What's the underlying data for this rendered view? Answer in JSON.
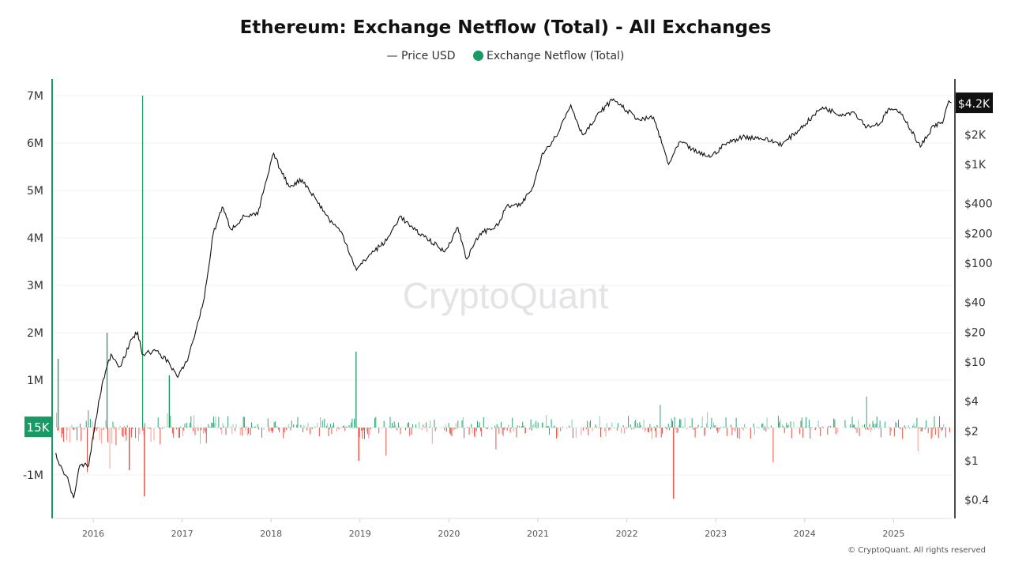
{
  "chart_data": {
    "type": "bar+line",
    "title": "Ethereum: Exchange Netflow (Total) - All Exchanges",
    "legend": {
      "placement": "top-center",
      "price_label": "— Price USD",
      "netflow_label": "Exchange Netflow (Total)"
    },
    "watermark": "CryptoQuant",
    "copyright": "© CryptoQuant. All rights reserved",
    "colors": {
      "price": "#111111",
      "inflow": "#1a9a63",
      "outflow": "#f03a2e",
      "left_axis": "#1a9a63"
    },
    "left_axis": {
      "ticks": [
        "7M",
        "6M",
        "5M",
        "4M",
        "3M",
        "2M",
        "1M",
        "-1M"
      ],
      "tick_values": [
        7000000,
        6000000,
        5000000,
        4000000,
        3000000,
        2000000,
        1000000,
        -1000000
      ],
      "current_label": "15K",
      "current_value": 15000,
      "range": [
        -1900000,
        7300000
      ]
    },
    "right_axis": {
      "scale": "log",
      "ticks": [
        "$2K",
        "$1K",
        "$400",
        "$200",
        "$100",
        "$40",
        "$20",
        "$10",
        "$4",
        "$2",
        "$1",
        "$0.4"
      ],
      "tick_values": [
        2000,
        1000,
        400,
        200,
        100,
        40,
        20,
        10,
        4,
        2,
        1,
        0.4
      ],
      "current_label": "$4.2K",
      "current_value": 4200
    },
    "x_axis": {
      "ticks": [
        "2016",
        "2017",
        "2018",
        "2019",
        "2020",
        "2021",
        "2022",
        "2023",
        "2024",
        "2025"
      ],
      "range": [
        2015.56,
        2025.65
      ]
    },
    "price_usd": [
      [
        2015.58,
        1.2
      ],
      [
        2015.62,
        0.9
      ],
      [
        2015.7,
        0.7
      ],
      [
        2015.78,
        0.42
      ],
      [
        2015.85,
        0.9
      ],
      [
        2015.95,
        0.9
      ],
      [
        2016.0,
        1.8
      ],
      [
        2016.1,
        6
      ],
      [
        2016.2,
        12
      ],
      [
        2016.3,
        9
      ],
      [
        2016.45,
        18
      ],
      [
        2016.5,
        20
      ],
      [
        2016.55,
        12
      ],
      [
        2016.7,
        13
      ],
      [
        2016.85,
        10
      ],
      [
        2016.95,
        7
      ],
      [
        2017.05,
        10
      ],
      [
        2017.15,
        20
      ],
      [
        2017.25,
        45
      ],
      [
        2017.35,
        200
      ],
      [
        2017.45,
        370
      ],
      [
        2017.55,
        220
      ],
      [
        2017.7,
        300
      ],
      [
        2017.85,
        310
      ],
      [
        2017.95,
        700
      ],
      [
        2018.03,
        1300
      ],
      [
        2018.1,
        900
      ],
      [
        2018.2,
        600
      ],
      [
        2018.35,
        700
      ],
      [
        2018.5,
        450
      ],
      [
        2018.65,
        280
      ],
      [
        2018.8,
        200
      ],
      [
        2018.96,
        85
      ],
      [
        2019.1,
        120
      ],
      [
        2019.3,
        170
      ],
      [
        2019.45,
        300
      ],
      [
        2019.6,
        220
      ],
      [
        2019.75,
        180
      ],
      [
        2019.95,
        130
      ],
      [
        2020.1,
        230
      ],
      [
        2020.2,
        110
      ],
      [
        2020.35,
        200
      ],
      [
        2020.55,
        240
      ],
      [
        2020.65,
        380
      ],
      [
        2020.8,
        380
      ],
      [
        2020.95,
        600
      ],
      [
        2021.05,
        1300
      ],
      [
        2021.2,
        1900
      ],
      [
        2021.37,
        4000
      ],
      [
        2021.5,
        2000
      ],
      [
        2021.6,
        2500
      ],
      [
        2021.7,
        3400
      ],
      [
        2021.85,
        4600
      ],
      [
        2022.0,
        3500
      ],
      [
        2022.15,
        2800
      ],
      [
        2022.3,
        3000
      ],
      [
        2022.47,
        1000
      ],
      [
        2022.6,
        1700
      ],
      [
        2022.8,
        1300
      ],
      [
        2022.95,
        1200
      ],
      [
        2023.1,
        1600
      ],
      [
        2023.3,
        1900
      ],
      [
        2023.5,
        1850
      ],
      [
        2023.75,
        1600
      ],
      [
        2023.95,
        2300
      ],
      [
        2024.2,
        3800
      ],
      [
        2024.4,
        3200
      ],
      [
        2024.55,
        3400
      ],
      [
        2024.7,
        2400
      ],
      [
        2024.85,
        2600
      ],
      [
        2024.95,
        3700
      ],
      [
        2025.1,
        3200
      ],
      [
        2025.3,
        1500
      ],
      [
        2025.45,
        2500
      ],
      [
        2025.55,
        2600
      ],
      [
        2025.62,
        4400
      ],
      [
        2025.65,
        4200
      ]
    ],
    "netflow_spikes": [
      [
        2015.6,
        1450000
      ],
      [
        2016.15,
        2000000
      ],
      [
        2016.55,
        7000000
      ],
      [
        2016.57,
        -1450000
      ],
      [
        2016.85,
        1100000
      ],
      [
        2018.95,
        1600000
      ],
      [
        2022.52,
        -1500000
      ],
      [
        2016.4,
        -900000
      ],
      [
        2018.98,
        -700000
      ]
    ]
  }
}
